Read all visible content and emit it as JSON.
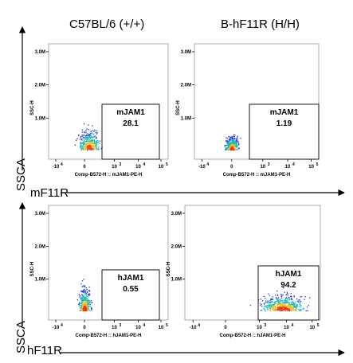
{
  "column_titles": [
    "C57BL/6 (+/+)",
    "B-hF11R (H/H)"
  ],
  "row_x_labels": [
    "mF11R",
    "hF11R"
  ],
  "row_y_labels": [
    "SSCA",
    "SSCA"
  ],
  "colors": {
    "gate": "#000000",
    "dots_low": "#1f3bd8",
    "dots_mid": "#23b8b8",
    "dots_high": "#f0c020",
    "dots_peak": "#e53a1b"
  },
  "chart_data": [
    {
      "type": "scatter",
      "panel": "C57BL/6 mJAM1",
      "xlabel": "Comp-B572-H :: mJAM1-PE-H",
      "ylabel": "SSC-H",
      "x_ticks": [
        "-10",
        "0",
        "10",
        "10",
        "10"
      ],
      "x_ticks_exp": [
        "4",
        "",
        "3",
        "4",
        "5"
      ],
      "y_ticks": [
        "3.0M",
        "2.0M",
        "1.0M"
      ],
      "gate": {
        "name": "mJAM1",
        "value": "28.1"
      },
      "population": {
        "center_x_log": 0,
        "spread": "0 to 10^4",
        "ssc_range": [
          0.1,
          0.5
        ]
      }
    },
    {
      "type": "scatter",
      "panel": "B-hF11R mJAM1",
      "xlabel": "Comp-B572-H :: mJAM1-PE-H",
      "ylabel": "SSC-H",
      "x_ticks": [
        "-10",
        "0",
        "10",
        "10",
        "10"
      ],
      "x_ticks_exp": [
        "4",
        "",
        "3",
        "4",
        "5"
      ],
      "y_ticks": [
        "3.0M",
        "2.0M",
        "1.0M"
      ],
      "gate": {
        "name": "mJAM1",
        "value": "1.19"
      },
      "population": {
        "center_x_log": 0,
        "spread": "-10^3 to 10^3",
        "ssc_range": [
          0.1,
          0.4
        ]
      }
    },
    {
      "type": "scatter",
      "panel": "C57BL/6 hJAM1",
      "xlabel": "Comp-B572-H :: hJAM1-PE-H",
      "ylabel": "SSC-H",
      "x_ticks": [
        "-10",
        "0",
        "10",
        "10",
        "10"
      ],
      "x_ticks_exp": [
        "4",
        "",
        "3",
        "4",
        "5"
      ],
      "y_ticks": [
        "3.0M",
        "2.0M",
        "1.0M"
      ],
      "gate": {
        "name": "hJAM1",
        "value": "0.55"
      },
      "population": {
        "center_x_log": 0,
        "spread": "-10^3 to 10^3",
        "ssc_range": [
          0.1,
          0.6
        ]
      }
    },
    {
      "type": "scatter",
      "panel": "B-hF11R hJAM1",
      "xlabel": "Comp-B572-H :: hJAM1-PE-H",
      "ylabel": "SSC-H",
      "x_ticks": [
        "-10",
        "0",
        "10",
        "10",
        "10"
      ],
      "x_ticks_exp": [
        "4",
        "",
        "3",
        "4",
        "5"
      ],
      "y_ticks": [
        "3.0M",
        "2.0M",
        "1.0M"
      ],
      "gate": {
        "name": "hJAM1",
        "value": "94.2"
      },
      "population": {
        "center_x_log": 3.5,
        "spread": "10^3 to 10^5",
        "ssc_range": [
          0.1,
          0.45
        ]
      }
    }
  ]
}
